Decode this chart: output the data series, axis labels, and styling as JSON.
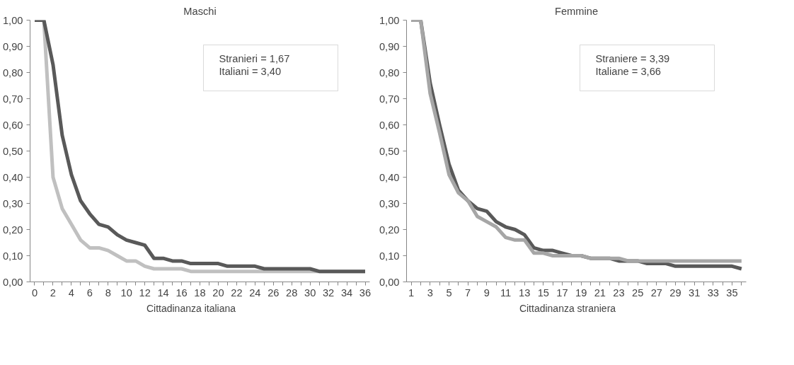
{
  "chart_data": [
    {
      "type": "line",
      "title": "Maschi",
      "x": [
        0,
        1,
        2,
        3,
        4,
        5,
        6,
        7,
        8,
        9,
        10,
        11,
        12,
        13,
        14,
        15,
        16,
        17,
        18,
        19,
        20,
        21,
        22,
        23,
        24,
        25,
        26,
        27,
        28,
        29,
        30,
        31,
        32,
        33,
        34,
        35,
        36
      ],
      "series": [
        {
          "color": "#c0c0c0",
          "values": [
            1.0,
            1.0,
            0.4,
            0.28,
            0.22,
            0.16,
            0.13,
            0.13,
            0.12,
            0.1,
            0.08,
            0.08,
            0.06,
            0.05,
            0.05,
            0.05,
            0.05,
            0.04,
            0.04,
            0.04,
            0.04,
            0.04,
            0.04,
            0.04,
            0.04,
            0.04,
            0.04,
            0.04,
            0.04,
            0.04,
            0.04,
            0.04,
            0.04,
            0.04,
            0.04,
            0.04,
            0.04
          ]
        },
        {
          "name": "Cittadinanza italiana",
          "color": "#595959",
          "values": [
            1.0,
            1.0,
            0.83,
            0.56,
            0.41,
            0.31,
            0.26,
            0.22,
            0.21,
            0.18,
            0.16,
            0.15,
            0.14,
            0.09,
            0.09,
            0.08,
            0.08,
            0.07,
            0.07,
            0.07,
            0.07,
            0.06,
            0.06,
            0.06,
            0.06,
            0.05,
            0.05,
            0.05,
            0.05,
            0.05,
            0.05,
            0.04,
            0.04,
            0.04,
            0.04,
            0.04,
            0.04
          ]
        }
      ],
      "xlim": [
        -0.5,
        36.5
      ],
      "xticks": [
        0,
        {
          "value": 1,
          "label": null
        },
        2,
        {
          "value": 3,
          "label": null
        },
        4,
        {
          "value": 5,
          "label": null
        },
        6,
        {
          "value": 7,
          "label": null
        },
        8,
        {
          "value": 9,
          "label": null
        },
        10,
        {
          "value": 11,
          "label": null
        },
        12,
        {
          "value": 13,
          "label": null
        },
        14,
        {
          "value": 15,
          "label": null
        },
        16,
        {
          "value": 17,
          "label": null
        },
        18,
        {
          "value": 19,
          "label": null
        },
        20,
        {
          "value": 21,
          "label": null
        },
        22,
        {
          "value": 23,
          "label": null
        },
        24,
        {
          "value": 25,
          "label": null
        },
        26,
        {
          "value": 27,
          "label": null
        },
        28,
        {
          "value": 29,
          "label": null
        },
        30,
        {
          "value": 31,
          "label": null
        },
        32,
        {
          "value": 33,
          "label": null
        },
        34,
        {
          "value": 35,
          "label": null
        },
        36
      ],
      "ylim": [
        0,
        1
      ],
      "yticks": [
        {
          "value": 0,
          "label": "0,00"
        },
        {
          "value": 0.1,
          "label": "0,10"
        },
        {
          "value": 0.2,
          "label": "0,20"
        },
        {
          "value": 0.3,
          "label": "0,30"
        },
        {
          "value": 0.4,
          "label": "0,40"
        },
        {
          "value": 0.5,
          "label": "0,50"
        },
        {
          "value": 0.6,
          "label": "0,60"
        },
        {
          "value": 0.7,
          "label": "0,70"
        },
        {
          "value": 0.8,
          "label": "0,80"
        },
        {
          "value": 0.9,
          "label": "0,90"
        },
        {
          "value": 1,
          "label": "1,00"
        }
      ],
      "annotations": [
        "Stranieri = 1,67",
        "Italiani = 3,40"
      ],
      "grid": false,
      "legend": "bottom",
      "marker": "none",
      "line_style": "solid"
    },
    {
      "type": "line",
      "title": "Femmine",
      "x": [
        1,
        2,
        3,
        4,
        5,
        6,
        7,
        8,
        9,
        10,
        11,
        12,
        13,
        14,
        15,
        16,
        17,
        18,
        19,
        20,
        21,
        22,
        23,
        24,
        25,
        26,
        27,
        28,
        29,
        30,
        31,
        32,
        33,
        34,
        35,
        36
      ],
      "series": [
        {
          "color": "#595959",
          "values": [
            1.0,
            1.0,
            0.76,
            0.6,
            0.45,
            0.35,
            0.31,
            0.28,
            0.27,
            0.23,
            0.21,
            0.2,
            0.18,
            0.13,
            0.12,
            0.12,
            0.11,
            0.1,
            0.1,
            0.09,
            0.09,
            0.09,
            0.08,
            0.08,
            0.08,
            0.07,
            0.07,
            0.07,
            0.06,
            0.06,
            0.06,
            0.06,
            0.06,
            0.06,
            0.06,
            0.05
          ]
        },
        {
          "name": "Cittadinanza straniera",
          "color": "#a6a6a6",
          "values": [
            1.0,
            1.0,
            0.72,
            0.57,
            0.41,
            0.34,
            0.31,
            0.25,
            0.23,
            0.21,
            0.17,
            0.16,
            0.16,
            0.11,
            0.11,
            0.1,
            0.1,
            0.1,
            0.1,
            0.09,
            0.09,
            0.09,
            0.09,
            0.08,
            0.08,
            0.08,
            0.08,
            0.08,
            0.08,
            0.08,
            0.08,
            0.08,
            0.08,
            0.08,
            0.08,
            0.08
          ]
        }
      ],
      "xlim": [
        0.5,
        36.5
      ],
      "xticks": [
        1,
        {
          "value": 2,
          "label": null
        },
        3,
        {
          "value": 4,
          "label": null
        },
        5,
        {
          "value": 6,
          "label": null
        },
        7,
        {
          "value": 8,
          "label": null
        },
        9,
        {
          "value": 10,
          "label": null
        },
        11,
        {
          "value": 12,
          "label": null
        },
        13,
        {
          "value": 14,
          "label": null
        },
        15,
        {
          "value": 16,
          "label": null
        },
        17,
        {
          "value": 18,
          "label": null
        },
        19,
        {
          "value": 20,
          "label": null
        },
        21,
        {
          "value": 22,
          "label": null
        },
        23,
        {
          "value": 24,
          "label": null
        },
        25,
        {
          "value": 26,
          "label": null
        },
        27,
        {
          "value": 28,
          "label": null
        },
        29,
        {
          "value": 30,
          "label": null
        },
        31,
        {
          "value": 32,
          "label": null
        },
        33,
        {
          "value": 34,
          "label": null
        },
        35,
        {
          "value": 36,
          "label": null
        }
      ],
      "ylim": [
        0,
        1
      ],
      "yticks": [
        {
          "value": 0,
          "label": "0,00"
        },
        {
          "value": 0.1,
          "label": "0,10"
        },
        {
          "value": 0.2,
          "label": "0,20"
        },
        {
          "value": 0.3,
          "label": "0,30"
        },
        {
          "value": 0.4,
          "label": "0,40"
        },
        {
          "value": 0.5,
          "label": "0,50"
        },
        {
          "value": 0.6,
          "label": "0,60"
        },
        {
          "value": 0.7,
          "label": "0,70"
        },
        {
          "value": 0.8,
          "label": "0,80"
        },
        {
          "value": 0.9,
          "label": "0,90"
        },
        {
          "value": 1,
          "label": "1,00"
        }
      ],
      "annotations": [
        "Straniere = 3,39",
        "Italiane  = 3,66"
      ],
      "grid": false,
      "legend": "bottom",
      "marker": "none",
      "line_style": "solid"
    }
  ]
}
